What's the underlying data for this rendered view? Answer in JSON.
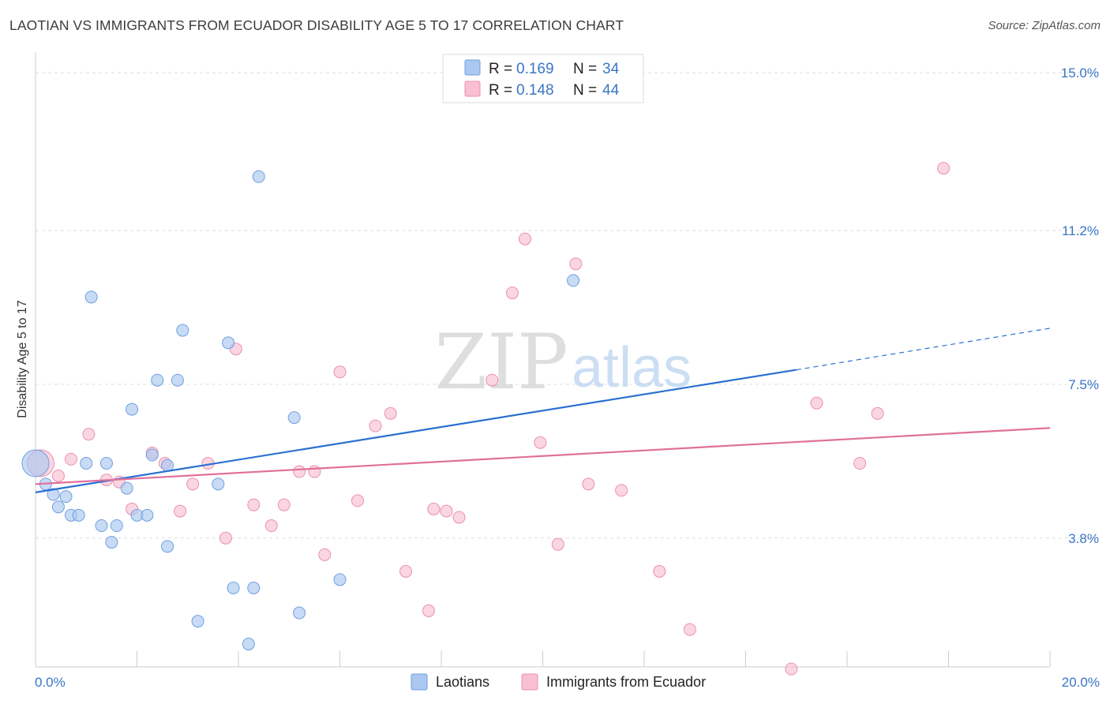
{
  "title": "LAOTIAN VS IMMIGRANTS FROM ECUADOR DISABILITY AGE 5 TO 17 CORRELATION CHART",
  "source": "Source: ZipAtlas.com",
  "watermark": {
    "zip": "ZIP",
    "atlas": "atlas"
  },
  "colors": {
    "laotian_fill": "#aac8f0",
    "laotian_stroke": "#6f9fe0",
    "laotian_line": "#2a6fd1",
    "ecuador_fill": "#f8c0d2",
    "ecuador_stroke": "#ec8fae",
    "ecuador_line": "#e0709a",
    "grid": "#dddddd",
    "tick_label": "#3a76c4"
  },
  "legend": {
    "rows": [
      {
        "r_label": "R = ",
        "r_value": "0.169",
        "n_label": "N = ",
        "n_value": "34"
      },
      {
        "r_label": "R = ",
        "r_value": "0.148",
        "n_label": "N = ",
        "n_value": "44"
      }
    ]
  },
  "chart_data": {
    "type": "scatter",
    "title": "LAOTIAN VS IMMIGRANTS FROM ECUADOR DISABILITY AGE 5 TO 17 CORRELATION CHART",
    "xlabel": "",
    "ylabel": "Disability Age 5 to 17",
    "xlim": [
      0,
      20
    ],
    "ylim": [
      0.7,
      15.8
    ],
    "x_tick_labels": [
      {
        "value": 0,
        "label": "0.0%"
      },
      {
        "value": 20,
        "label": "20.0%"
      }
    ],
    "y_tick_labels": [
      {
        "value": 3.8,
        "label": "3.8%"
      },
      {
        "value": 7.5,
        "label": "7.5%"
      },
      {
        "value": 11.2,
        "label": "11.2%"
      },
      {
        "value": 15.0,
        "label": "15.0%"
      }
    ],
    "grid": true,
    "legend_position": "top-center",
    "series": [
      {
        "name": "Laotians",
        "r": 0.169,
        "n": 34,
        "trend": {
          "x0": 0,
          "y0": 4.9,
          "x1": 15.0,
          "y1": 7.85,
          "x_dash_end": 20.0,
          "y_dash_end": 8.85
        },
        "points": [
          [
            0.0,
            5.6
          ],
          [
            0.2,
            5.1
          ],
          [
            0.35,
            4.85
          ],
          [
            0.6,
            4.8
          ],
          [
            0.45,
            4.55
          ],
          [
            0.7,
            4.35
          ],
          [
            0.85,
            4.35
          ],
          [
            1.1,
            9.6
          ],
          [
            1.0,
            5.6
          ],
          [
            1.4,
            5.6
          ],
          [
            1.3,
            4.1
          ],
          [
            1.6,
            4.1
          ],
          [
            1.5,
            3.7
          ],
          [
            1.8,
            5.0
          ],
          [
            1.9,
            6.9
          ],
          [
            2.0,
            4.35
          ],
          [
            2.2,
            4.35
          ],
          [
            2.3,
            5.8
          ],
          [
            2.4,
            7.6
          ],
          [
            2.6,
            5.55
          ],
          [
            2.6,
            3.6
          ],
          [
            2.8,
            7.6
          ],
          [
            2.9,
            8.8
          ],
          [
            3.2,
            1.8
          ],
          [
            3.6,
            5.1
          ],
          [
            3.8,
            8.5
          ],
          [
            3.9,
            2.6
          ],
          [
            4.3,
            2.6
          ],
          [
            4.4,
            12.5
          ],
          [
            4.2,
            1.25
          ],
          [
            5.1,
            6.7
          ],
          [
            5.2,
            2.0
          ],
          [
            6.0,
            2.8
          ],
          [
            10.6,
            10.0
          ]
        ]
      },
      {
        "name": "Immigrants from Ecuador",
        "r": 0.148,
        "n": 44,
        "trend": {
          "x0": 0,
          "y0": 5.1,
          "x1": 20.0,
          "y1": 6.45
        },
        "points": [
          [
            0.1,
            5.6
          ],
          [
            0.45,
            5.3
          ],
          [
            0.7,
            5.7
          ],
          [
            1.05,
            6.3
          ],
          [
            1.4,
            5.2
          ],
          [
            1.65,
            5.15
          ],
          [
            1.9,
            4.5
          ],
          [
            2.3,
            5.85
          ],
          [
            2.55,
            5.6
          ],
          [
            2.85,
            4.45
          ],
          [
            3.1,
            5.1
          ],
          [
            3.4,
            5.6
          ],
          [
            3.75,
            3.8
          ],
          [
            3.95,
            8.35
          ],
          [
            4.3,
            4.6
          ],
          [
            4.65,
            4.1
          ],
          [
            4.9,
            4.6
          ],
          [
            5.2,
            5.4
          ],
          [
            5.5,
            5.4
          ],
          [
            5.7,
            3.4
          ],
          [
            6.0,
            7.8
          ],
          [
            6.35,
            4.7
          ],
          [
            6.7,
            6.5
          ],
          [
            7.0,
            6.8
          ],
          [
            7.3,
            3.0
          ],
          [
            7.75,
            2.05
          ],
          [
            7.85,
            4.5
          ],
          [
            8.1,
            4.45
          ],
          [
            8.35,
            4.3
          ],
          [
            9.0,
            7.6
          ],
          [
            9.4,
            9.7
          ],
          [
            9.65,
            11.0
          ],
          [
            9.95,
            6.1
          ],
          [
            10.3,
            3.65
          ],
          [
            10.65,
            10.4
          ],
          [
            10.9,
            5.1
          ],
          [
            11.55,
            4.95
          ],
          [
            12.3,
            3.0
          ],
          [
            12.9,
            1.6
          ],
          [
            14.9,
            0.65
          ],
          [
            15.4,
            7.05
          ],
          [
            16.25,
            5.6
          ],
          [
            16.6,
            6.8
          ],
          [
            17.9,
            12.7
          ]
        ]
      }
    ]
  }
}
